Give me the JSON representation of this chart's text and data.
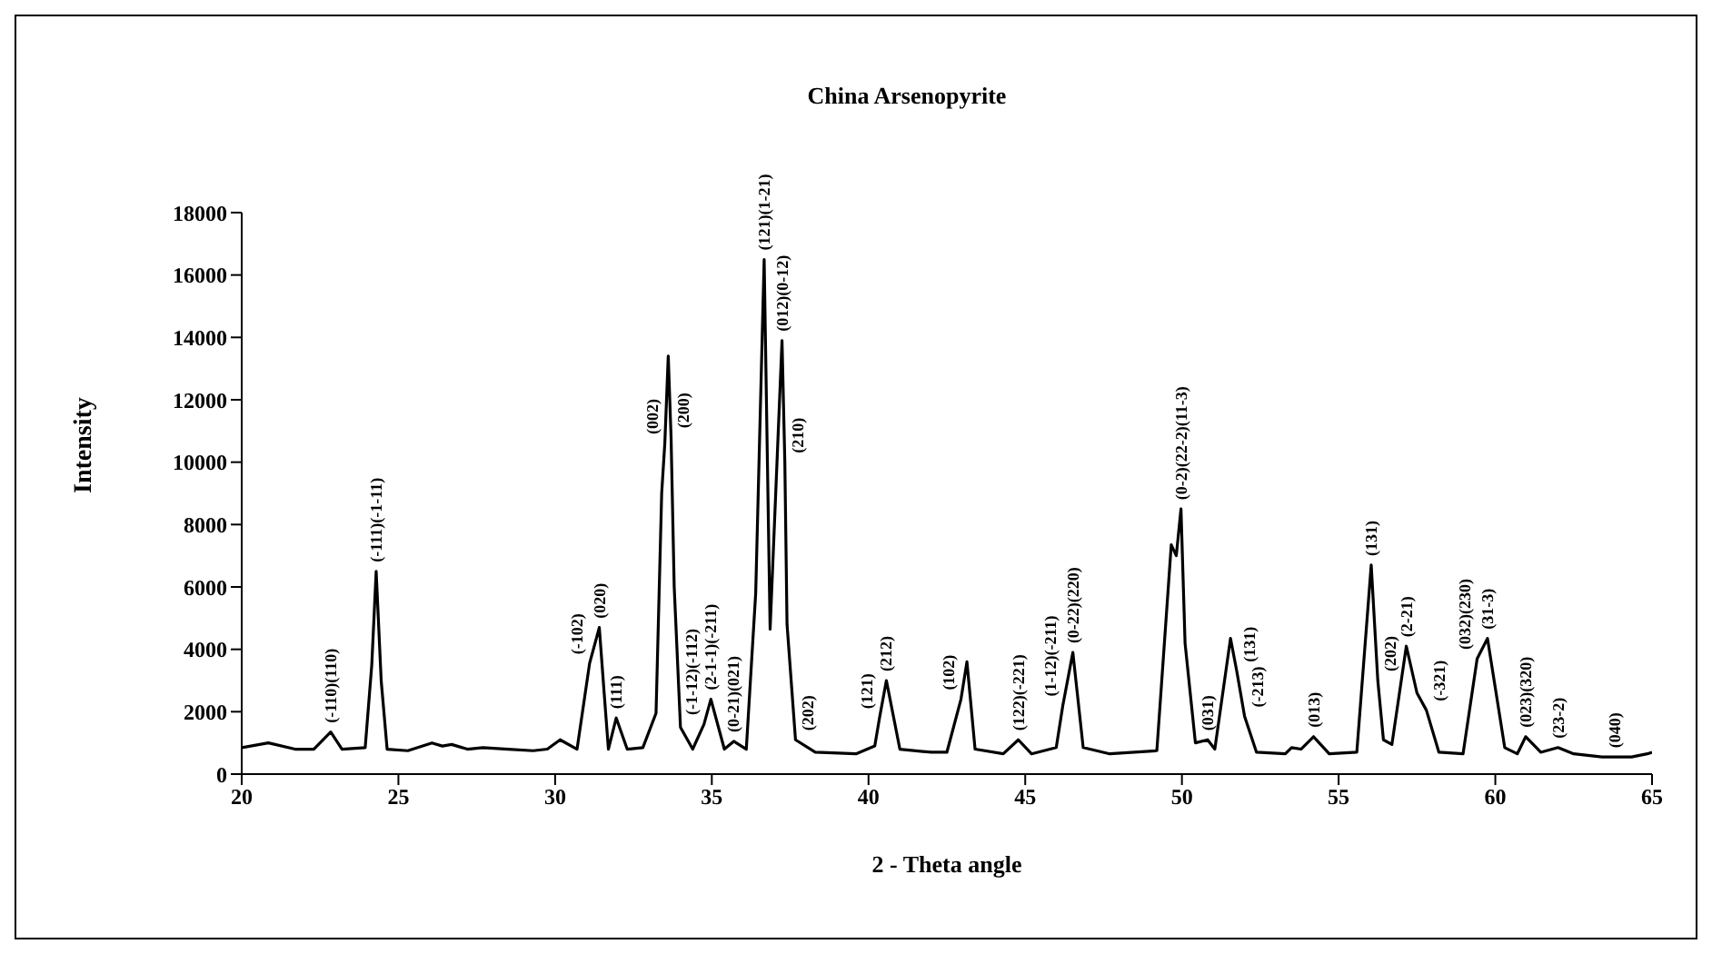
{
  "chart_data": {
    "type": "line",
    "title": "China Arsenopyrite",
    "xlabel": "2 - Theta angle",
    "ylabel": "Intensity",
    "x": [
      20,
      20.85,
      21.7,
      22.3,
      22.84,
      23.2,
      23.94,
      24.15,
      24.29,
      24.45,
      24.64,
      25.3,
      26.07,
      26.4,
      26.7,
      27.2,
      27.7,
      28.5,
      29.3,
      29.75,
      30.16,
      30.7,
      31.1,
      31.41,
      31.55,
      31.7,
      31.95,
      32.3,
      32.8,
      33.22,
      33.4,
      33.5,
      33.61,
      33.7,
      33.8,
      34.0,
      34.39,
      34.75,
      34.97,
      35.4,
      35.7,
      36.1,
      36.4,
      36.67,
      36.86,
      37.24,
      37.33,
      37.4,
      37.67,
      38.3,
      39.6,
      40.2,
      40.35,
      40.57,
      41.0,
      42.0,
      42.5,
      42.95,
      43.14,
      43.4,
      44.3,
      44.78,
      45.2,
      45.99,
      46.2,
      46.52,
      46.85,
      47.7,
      49.2,
      49.66,
      49.82,
      49.97,
      50.1,
      50.43,
      50.82,
      51.05,
      51.55,
      51.75,
      52.0,
      52.38,
      53.3,
      53.5,
      53.8,
      54.2,
      54.7,
      55.58,
      56.04,
      56.25,
      56.43,
      56.7,
      57.16,
      57.5,
      57.8,
      58.2,
      58.97,
      59.42,
      59.75,
      60.3,
      60.7,
      60.97,
      61.45,
      62.0,
      62.5,
      63.4,
      63.8,
      64.35,
      64.85,
      65
    ],
    "values": [
      850,
      1000,
      800,
      800,
      1350,
      800,
      850,
      3500,
      6500,
      3000,
      800,
      750,
      1000,
      900,
      950,
      800,
      850,
      800,
      750,
      800,
      1100,
      800,
      3550,
      4700,
      2800,
      800,
      1800,
      800,
      850,
      1950,
      9000,
      10600,
      13400,
      10800,
      6000,
      1500,
      800,
      1600,
      2400,
      800,
      1050,
      800,
      5800,
      16500,
      4650,
      13900,
      10000,
      4800,
      1100,
      700,
      650,
      900,
      1800,
      3000,
      800,
      700,
      700,
      2400,
      3600,
      800,
      650,
      1100,
      650,
      850,
      2200,
      3900,
      850,
      650,
      750,
      7350,
      7000,
      8500,
      4200,
      1000,
      1100,
      800,
      4350,
      3300,
      1850,
      700,
      650,
      850,
      800,
      1200,
      650,
      700,
      6700,
      3000,
      1100,
      950,
      4100,
      2600,
      2050,
      700,
      650,
      3700,
      4350,
      850,
      650,
      1200,
      700,
      850,
      650,
      550,
      550,
      550,
      650,
      700
    ],
    "color": "#000000",
    "marker": "none",
    "line_style": "solid",
    "grid": false,
    "legend": false,
    "xlim": [
      20,
      65
    ],
    "xticks": [
      20,
      25,
      30,
      35,
      40,
      45,
      50,
      55,
      60,
      65
    ],
    "ylim": [
      0,
      18000
    ],
    "yticks": [
      0,
      2000,
      4000,
      6000,
      8000,
      10000,
      12000,
      14000,
      16000,
      18000
    ],
    "annotations": [
      {
        "text": "(-110)(110)",
        "x": 22.84,
        "y": 1350
      },
      {
        "text": "(-111)(-1-11)",
        "x": 24.29,
        "y": 6500
      },
      {
        "text": "(-102)",
        "x": 31.1,
        "y": 3550
      },
      {
        "text": "(020)",
        "x": 31.41,
        "y": 4700
      },
      {
        "text": "(111)",
        "x": 31.95,
        "y": 1800
      },
      {
        "text": "(002)",
        "x": 33.5,
        "y": 10600
      },
      {
        "text": "(200)",
        "x": 33.7,
        "y": 10800
      },
      {
        "text": "(-1-12)(-112)",
        "x": 34.75,
        "y": 1600
      },
      {
        "text": "(2-1-1)(-211)",
        "x": 34.97,
        "y": 2400
      },
      {
        "text": "(0-21)(021)",
        "x": 35.7,
        "y": 1050
      },
      {
        "text": "(121)(1-21)",
        "x": 36.67,
        "y": 16500
      },
      {
        "text": "(012)(0-12)",
        "x": 37.24,
        "y": 13900
      },
      {
        "text": "(210)",
        "x": 37.33,
        "y": 10000
      },
      {
        "text": "(202)",
        "x": 37.67,
        "y": 1100
      },
      {
        "text": "(121)",
        "x": 40.35,
        "y": 1800
      },
      {
        "text": "(212)",
        "x": 40.57,
        "y": 3000
      },
      {
        "text": "(102)",
        "x": 42.95,
        "y": 2400
      },
      {
        "text": "(122)(-221)",
        "x": 44.78,
        "y": 1100
      },
      {
        "text": "(1-12)(-211)",
        "x": 46.2,
        "y": 2200
      },
      {
        "text": "(0-22)(220)",
        "x": 46.52,
        "y": 3900
      },
      {
        "text": "(0-2)(22-2)(11-3)",
        "x": 49.97,
        "y": 8500
      },
      {
        "text": "(031)",
        "x": 50.82,
        "y": 1100
      },
      {
        "text": "(131)",
        "x": 51.75,
        "y": 3300
      },
      {
        "text": "(-213)",
        "x": 52.0,
        "y": 1850
      },
      {
        "text": "(013)",
        "x": 54.2,
        "y": 1200
      },
      {
        "text": "(131)",
        "x": 56.04,
        "y": 6700
      },
      {
        "text": "(202)",
        "x": 56.25,
        "y": 3000
      },
      {
        "text": "(2-21)",
        "x": 57.16,
        "y": 4100
      },
      {
        "text": "(-321)",
        "x": 57.8,
        "y": 2050
      },
      {
        "text": "(032)(230)",
        "x": 59.42,
        "y": 3700
      },
      {
        "text": "(31-3)",
        "x": 59.75,
        "y": 4350
      },
      {
        "text": "(023)(320)",
        "x": 60.97,
        "y": 1200
      },
      {
        "text": "(23-2)",
        "x": 62.0,
        "y": 850
      },
      {
        "text": "(040)",
        "x": 63.8,
        "y": 550
      }
    ]
  }
}
